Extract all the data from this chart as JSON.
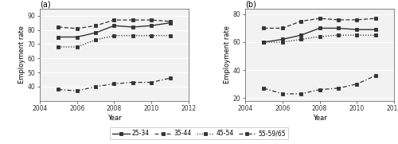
{
  "years": [
    2005,
    2006,
    2007,
    2008,
    2009,
    2010,
    2011
  ],
  "panel_a": {
    "title": "(a)",
    "ylabel": "Employment rate",
    "xlabel": "Year",
    "ylim": [
      30,
      95
    ],
    "yticks": [
      40,
      50,
      60,
      70,
      80,
      90
    ],
    "series": {
      "25-34": [
        75,
        75,
        78,
        83,
        82,
        83,
        85
      ],
      "35-44": [
        82,
        81,
        83,
        87,
        87,
        87,
        86
      ],
      "45-54": [
        68,
        68,
        73,
        76,
        76,
        76,
        76
      ],
      "55-59/65": [
        38,
        37,
        40,
        42,
        43,
        43,
        46
      ]
    }
  },
  "panel_b": {
    "title": "(b)",
    "ylabel": "Employment rate",
    "xlabel": "Year",
    "ylim": [
      18,
      84
    ],
    "yticks": [
      20,
      40,
      60,
      80
    ],
    "series": {
      "25-34": [
        60,
        62,
        65,
        70,
        70,
        69,
        69
      ],
      "35-44": [
        70,
        70,
        75,
        77,
        76,
        76,
        77
      ],
      "45-54": [
        60,
        60,
        62,
        64,
        65,
        65,
        65
      ],
      "55-59/65": [
        27,
        23,
        23,
        26,
        27,
        30,
        36
      ]
    }
  },
  "series_styles": {
    "25-34": {
      "color": "#333333",
      "linestyle": "solid",
      "marker": "p",
      "markersize": 3.5,
      "linewidth": 0.9
    },
    "35-44": {
      "color": "#333333",
      "linestyle": "dashed",
      "marker": "p",
      "markersize": 3.5,
      "linewidth": 0.9
    },
    "45-54": {
      "color": "#333333",
      "linestyle": "dotted",
      "marker": "p",
      "markersize": 3.5,
      "linewidth": 0.9
    },
    "55-59/65": {
      "color": "#333333",
      "linestyle": "dashdot",
      "marker": "p",
      "markersize": 3.5,
      "linewidth": 0.9
    }
  },
  "xticks": [
    2004,
    2006,
    2008,
    2010,
    2012
  ],
  "xlim": [
    2004,
    2012
  ],
  "bg_color": "#f2f2f2",
  "legend_labels": [
    "25-34",
    "35-44",
    "45-54",
    "55-59/65"
  ]
}
